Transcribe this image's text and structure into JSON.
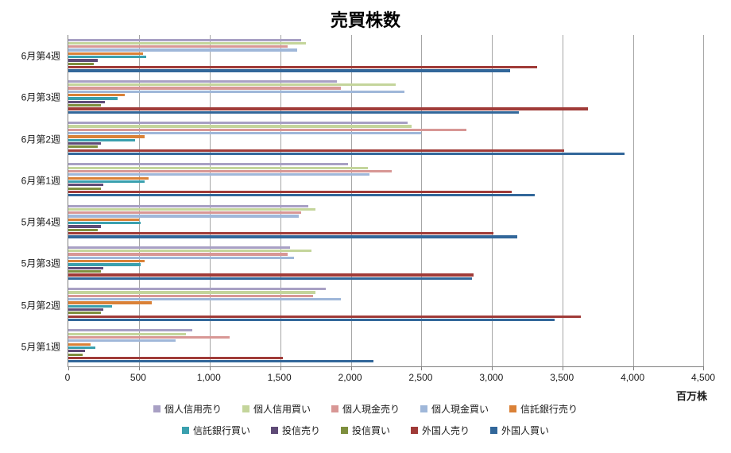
{
  "title": "売買株数",
  "axis_unit_label": "百万株",
  "chart_data": {
    "type": "bar",
    "orientation": "horizontal",
    "title": "売買株数",
    "xlabel": "百万株",
    "ylabel": "",
    "xlim": [
      0,
      4500
    ],
    "xticks": [
      0,
      500,
      1000,
      1500,
      2000,
      2500,
      3000,
      3500,
      4000,
      4500
    ],
    "grid": true,
    "legend_position": "bottom",
    "categories": [
      "6月第4週",
      "6月第3週",
      "6月第2週",
      "6月第1週",
      "5月第4週",
      "5月第3週",
      "5月第2週",
      "5月第1週"
    ],
    "series": [
      {
        "name": "個人信用売り",
        "color": "#a8a0c4",
        "values": [
          1650,
          1900,
          2400,
          1980,
          1700,
          1570,
          1820,
          880
        ]
      },
      {
        "name": "個人信用買い",
        "color": "#c4d59b",
        "values": [
          1680,
          2320,
          2430,
          2120,
          1750,
          1720,
          1750,
          830
        ]
      },
      {
        "name": "個人現金売り",
        "color": "#d89795",
        "values": [
          1550,
          1930,
          2820,
          2290,
          1650,
          1550,
          1730,
          1140
        ]
      },
      {
        "name": "個人現金買い",
        "color": "#9fb7d9",
        "values": [
          1620,
          2380,
          2500,
          2130,
          1630,
          1600,
          1930,
          760
        ]
      },
      {
        "name": "信託銀行売り",
        "color": "#da8137",
        "values": [
          530,
          400,
          540,
          570,
          500,
          540,
          590,
          160
        ]
      },
      {
        "name": "信託銀行買い",
        "color": "#3aa0ae",
        "values": [
          550,
          350,
          470,
          540,
          510,
          510,
          310,
          190
        ]
      },
      {
        "name": "投信売り",
        "color": "#5f4b77",
        "values": [
          210,
          260,
          230,
          250,
          230,
          250,
          250,
          120
        ]
      },
      {
        "name": "投信買い",
        "color": "#7e8f3e",
        "values": [
          180,
          230,
          210,
          230,
          210,
          230,
          230,
          100
        ]
      },
      {
        "name": "外国人売り",
        "color": "#a03b38",
        "values": [
          3320,
          3680,
          3510,
          3140,
          3010,
          2870,
          3630,
          1520
        ]
      },
      {
        "name": "外国人買い",
        "color": "#32679a",
        "values": [
          3130,
          3190,
          3940,
          3300,
          3180,
          2860,
          3440,
          2160
        ]
      }
    ]
  }
}
